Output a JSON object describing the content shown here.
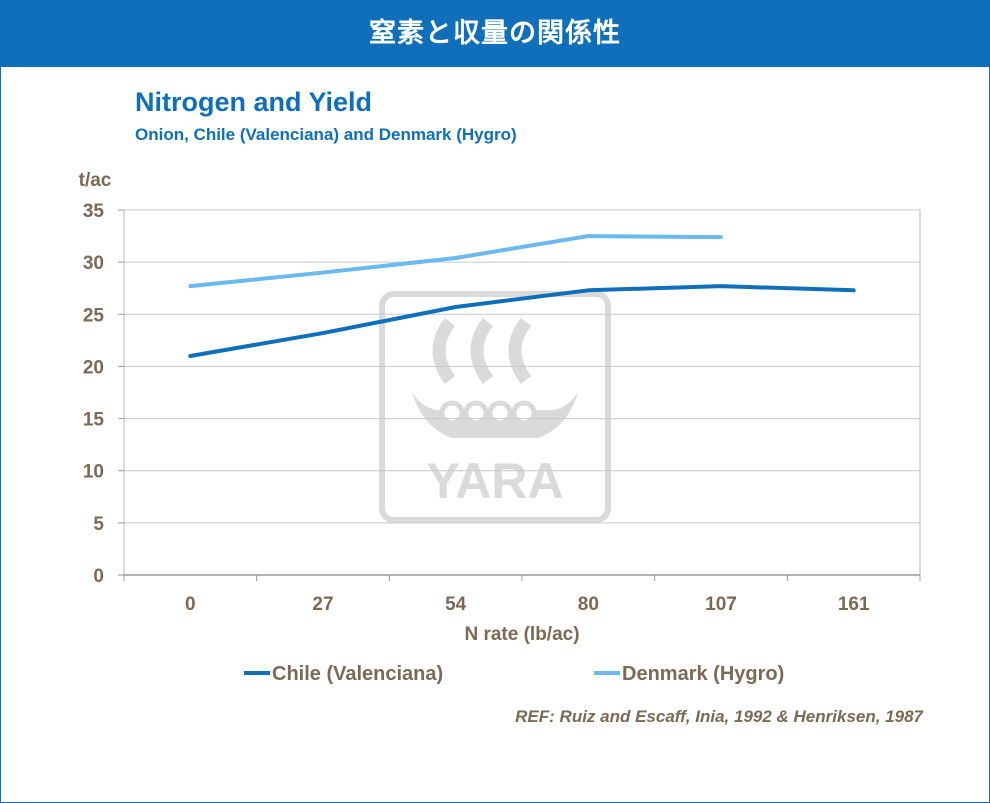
{
  "banner": {
    "title": "窒素と収量の関係性"
  },
  "chart_data": {
    "type": "line",
    "title": "Nitrogen and Yield",
    "subtitle": "Onion, Chile (Valenciana) and Denmark (Hygro)",
    "ylabel": "t/ac",
    "xlabel": "N rate (lb/ac)",
    "categories": [
      "0",
      "27",
      "54",
      "80",
      "107",
      "161"
    ],
    "ylim": [
      0,
      35
    ],
    "yticks": [
      0,
      5,
      10,
      15,
      20,
      25,
      30,
      35
    ],
    "grid": true,
    "legend_position": "bottom",
    "series": [
      {
        "name": "Chile (Valenciana)",
        "color": "#0f6fba",
        "values": [
          21.0,
          23.2,
          25.7,
          27.3,
          27.7,
          27.3
        ]
      },
      {
        "name": "Denmark (Hygro)",
        "color": "#6cb8f0",
        "values": [
          27.7,
          29.0,
          30.4,
          32.5,
          32.4,
          null
        ]
      }
    ]
  },
  "reference": "REF: Ruiz and Escaff, Inia, 1992 & Henriksen, 1987",
  "watermark": {
    "text": "YARA",
    "color": "#cfcfcf"
  }
}
